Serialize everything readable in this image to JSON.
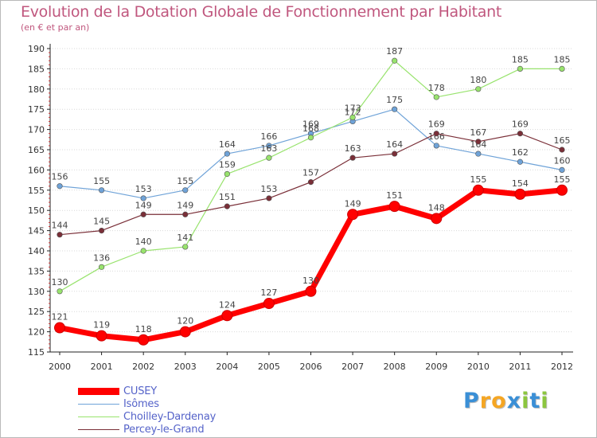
{
  "chart_data": {
    "type": "line",
    "title": "Evolution de la Dotation Globale de Fonctionnement par Habitant",
    "subtitle": "(en € et par an)",
    "xlabel": "",
    "ylabel": "",
    "categories": [
      "2000",
      "2001",
      "2002",
      "2003",
      "2004",
      "2005",
      "2006",
      "2007",
      "2008",
      "2009",
      "2010",
      "2011",
      "2012"
    ],
    "ylim": [
      115,
      190
    ],
    "yticks": [
      115,
      120,
      125,
      130,
      135,
      140,
      145,
      150,
      155,
      160,
      165,
      170,
      175,
      180,
      185,
      190
    ],
    "series": [
      {
        "name": "CUSEY",
        "color": "#ff0000",
        "values": [
          121,
          119,
          118,
          120,
          124,
          127,
          130,
          149,
          151,
          148,
          155,
          154,
          155
        ]
      },
      {
        "name": "Isômes",
        "color": "#6fa3d8",
        "values": [
          156,
          155,
          153,
          155,
          164,
          166,
          169,
          172,
          175,
          166,
          164,
          162,
          160
        ]
      },
      {
        "name": "Choilley-Dardenay",
        "color": "#98e36d",
        "values": [
          130,
          136,
          140,
          141,
          159,
          163,
          168,
          173,
          187,
          178,
          180,
          185,
          185
        ]
      },
      {
        "name": "Percey-le-Grand",
        "color": "#7a2f38",
        "values": [
          144,
          145,
          149,
          149,
          151,
          153,
          157,
          163,
          164,
          169,
          167,
          169,
          165
        ]
      }
    ]
  },
  "legend": {
    "items": [
      {
        "label": "CUSEY",
        "color": "#ff0000"
      },
      {
        "label": "Isômes",
        "color": "#6fa3d8"
      },
      {
        "label": "Choilley-Dardenay",
        "color": "#98e36d"
      },
      {
        "label": "Percey-le-Grand",
        "color": "#7a2f38"
      }
    ]
  },
  "logo": {
    "letters": [
      "P",
      "r",
      "o",
      "x",
      "i",
      "t",
      "i"
    ],
    "colors": [
      "#3a8fd6",
      "#f5a623",
      "#f5a623",
      "#3a8fd6",
      "#8cc63f",
      "#3a8fd6",
      "#8cc63f"
    ]
  }
}
